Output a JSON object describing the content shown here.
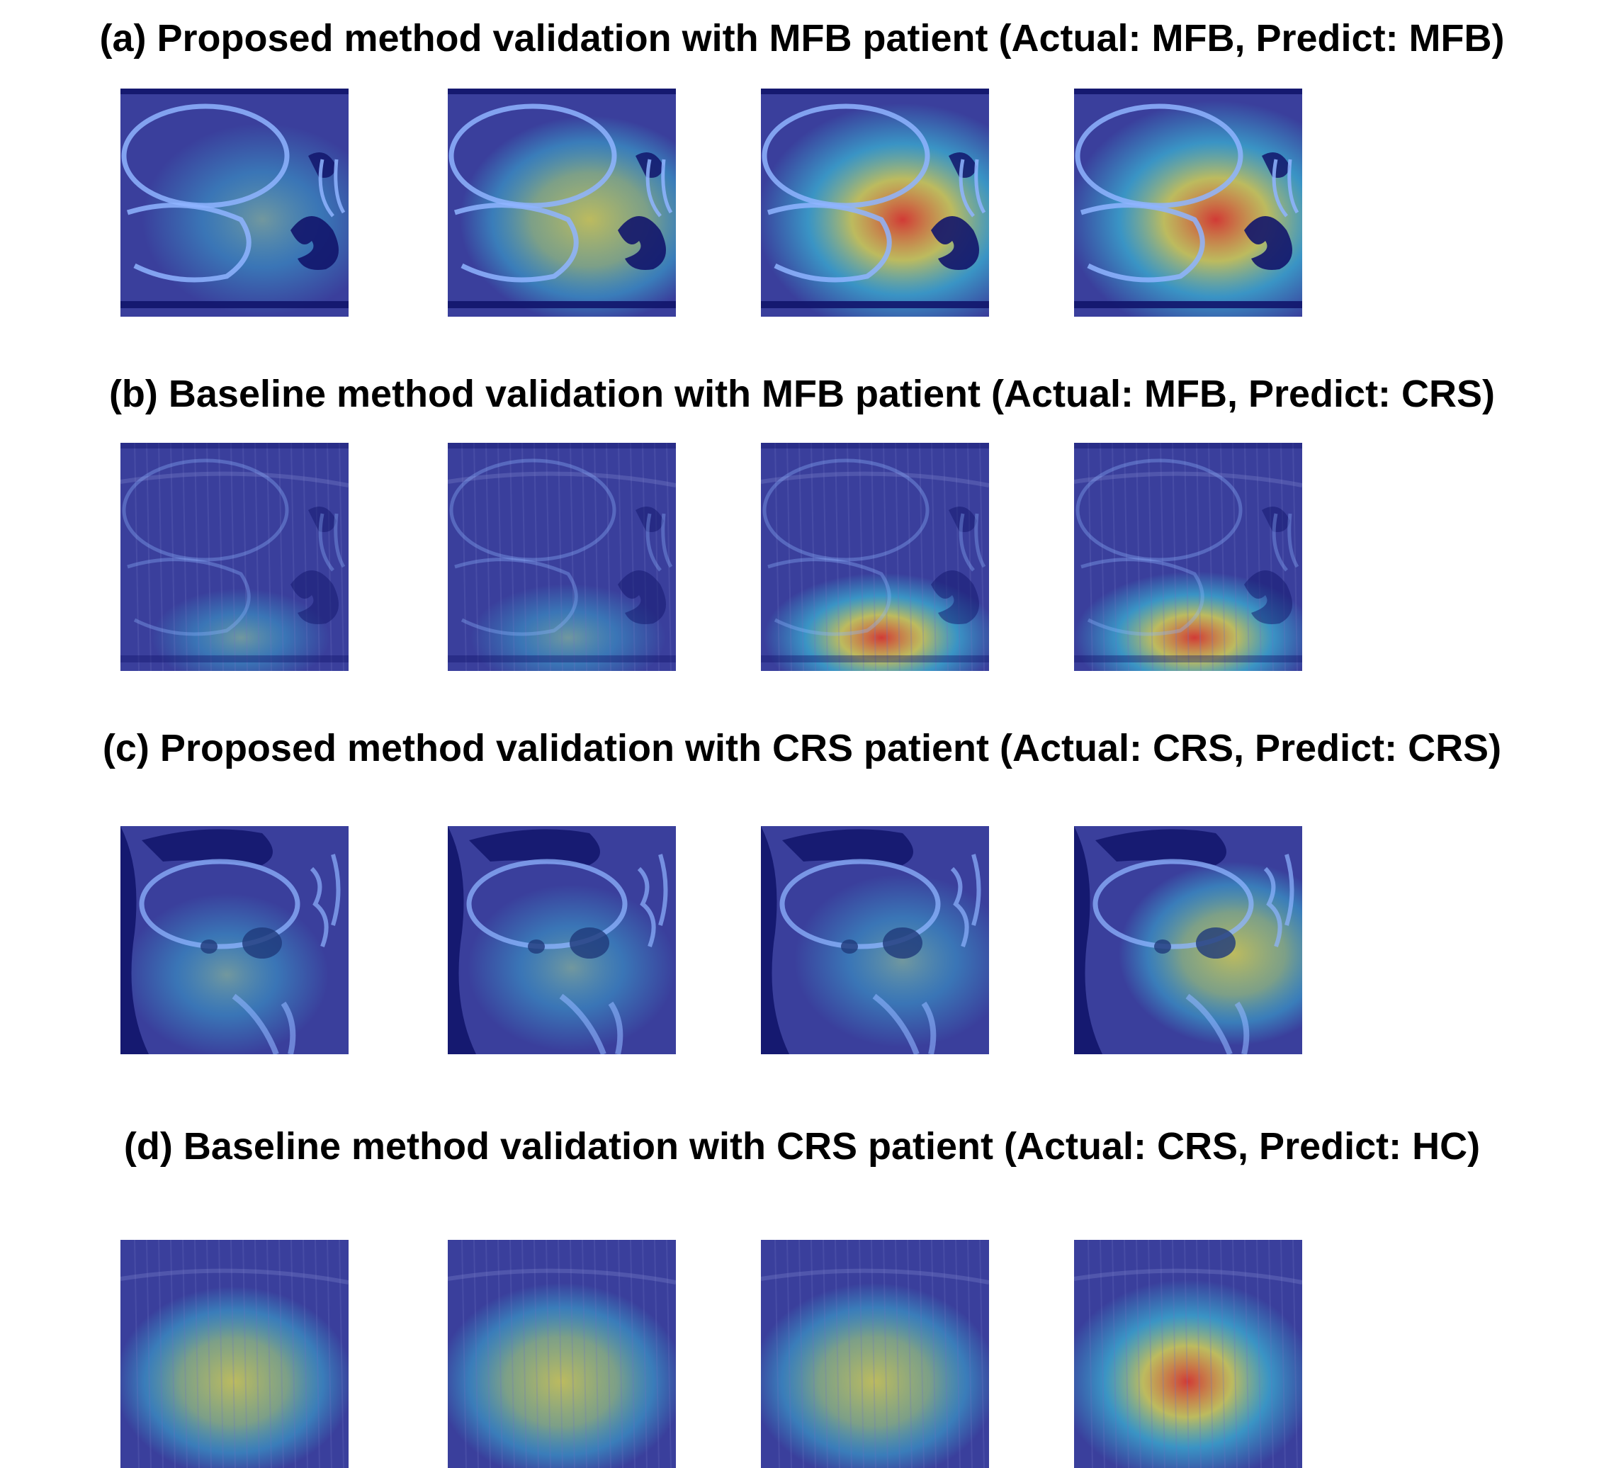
{
  "rows": [
    {
      "title": "(a) Proposed method validation with MFB patient (Actual: MFB, Predict: MFB)",
      "style": "mfb-proposed",
      "heat": [
        0.55,
        0.7,
        0.95,
        1.0
      ]
    },
    {
      "title": "(b) Baseline method validation with MFB patient (Actual: MFB, Predict: CRS)",
      "style": "mfb-baseline",
      "heat": [
        0.45,
        0.6,
        0.95,
        1.0
      ]
    },
    {
      "title": "(c) Proposed method validation with CRS patient (Actual: CRS, Predict: CRS)",
      "style": "crs-proposed",
      "heat": [
        0.4,
        0.45,
        0.55,
        0.7
      ]
    },
    {
      "title": "(d) Baseline method validation with CRS patient (Actual: CRS, Predict: HC)",
      "style": "crs-baseline",
      "heat": [
        0.7,
        0.85,
        0.85,
        1.0
      ]
    }
  ],
  "colors": {
    "background": "#ffffff",
    "base_blue": "#3a3f9c",
    "dark_blue": "#12156b",
    "bone": "#8fb4ff",
    "cyan": "#39d9e6",
    "yellow": "#e8e44a",
    "red": "#e23a2a"
  }
}
